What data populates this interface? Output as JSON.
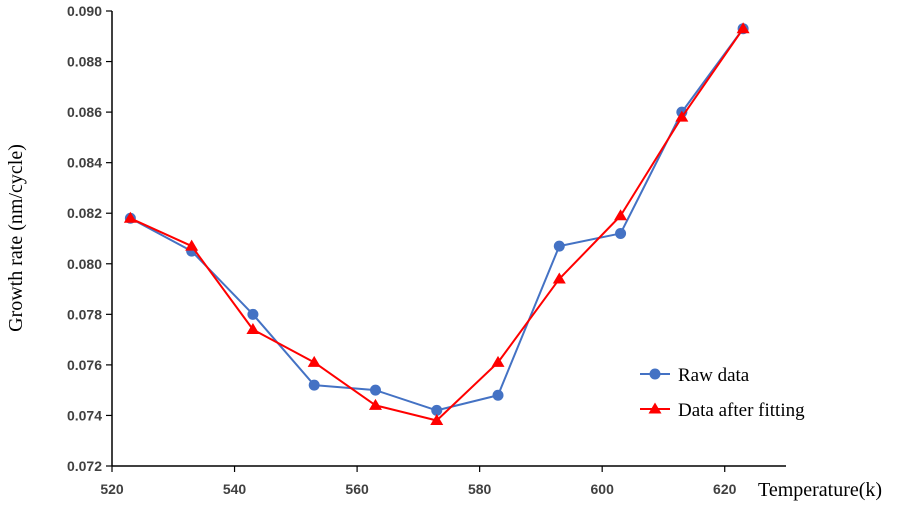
{
  "chart_data": {
    "type": "line",
    "title": "",
    "xlabel": "Temperature(k)",
    "ylabel": "Growth rate (nm/cycle)",
    "xlim": [
      520,
      630
    ],
    "ylim": [
      0.072,
      0.09
    ],
    "x_ticks": [
      520,
      540,
      560,
      580,
      600,
      620
    ],
    "x_tick_labels": [
      "520",
      "540",
      "560",
      "580",
      "600",
      "620"
    ],
    "y_ticks": [
      0.072,
      0.074,
      0.076,
      0.078,
      0.08,
      0.082,
      0.084,
      0.086,
      0.088,
      0.09
    ],
    "y_tick_labels": [
      "0.072",
      "0.074",
      "0.076",
      "0.078",
      "0.080",
      "0.082",
      "0.084",
      "0.086",
      "0.088",
      "0.090"
    ],
    "grid": false,
    "legend_position": "right",
    "x": [
      523,
      533,
      543,
      553,
      563,
      573,
      583,
      593,
      603,
      613,
      623
    ],
    "series": [
      {
        "name": "Raw data",
        "color": "#4472C4",
        "marker": "circle",
        "values": [
          0.0818,
          0.0805,
          0.078,
          0.0752,
          0.075,
          0.0742,
          0.0748,
          0.0807,
          0.0812,
          0.086,
          0.0893
        ]
      },
      {
        "name": "Data after fitting",
        "color": "#FF0000",
        "marker": "triangle",
        "values": [
          0.0818,
          0.0807,
          0.0774,
          0.0761,
          0.0744,
          0.0738,
          0.0761,
          0.0794,
          0.0819,
          0.0858,
          0.0893
        ]
      }
    ]
  }
}
